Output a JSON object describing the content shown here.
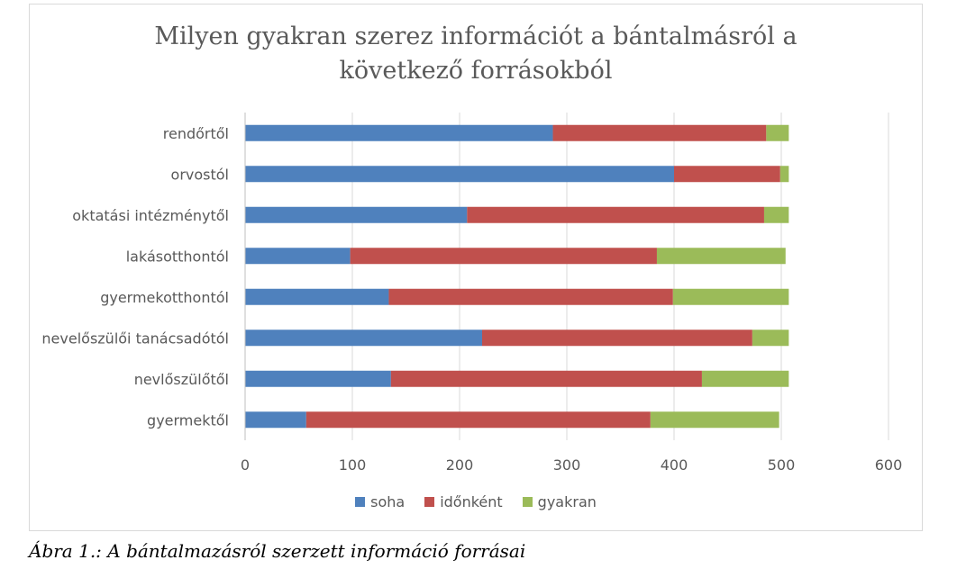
{
  "chart_data": {
    "type": "bar",
    "orientation": "horizontal",
    "stacked": true,
    "title": "Milyen gyakran szerez információt a bántalmásról a következő forrásokból",
    "title_lines": [
      "Milyen gyakran szerez információt a bántalmásról a",
      "következő forrásokból"
    ],
    "categories": [
      "rendőrtől",
      "orvostól",
      "oktatási intézménytől",
      "lakásotthontól",
      "gyermekotthontól",
      "nevelőszülői tanácsadótól",
      "nevlőszülőtől",
      "gyermektől"
    ],
    "series": [
      {
        "name": "soha",
        "color": "#4f81bd",
        "values": [
          287,
          400,
          207,
          98,
          134,
          221,
          136,
          57
        ]
      },
      {
        "name": "időnként",
        "color": "#c0504d",
        "values": [
          199,
          99,
          277,
          286,
          265,
          252,
          290,
          321
        ]
      },
      {
        "name": "gyakran",
        "color": "#9bbb59",
        "values": [
          21,
          8,
          23,
          120,
          108,
          34,
          81,
          120
        ]
      }
    ],
    "xlim": [
      0,
      600
    ],
    "xticks": [
      "0",
      "100",
      "200",
      "300",
      "400",
      "500",
      "600"
    ],
    "grid": true,
    "legend_position": "bottom"
  },
  "caption": "Ábra 1.: A bántalmazásról szerzett információ forrásai"
}
